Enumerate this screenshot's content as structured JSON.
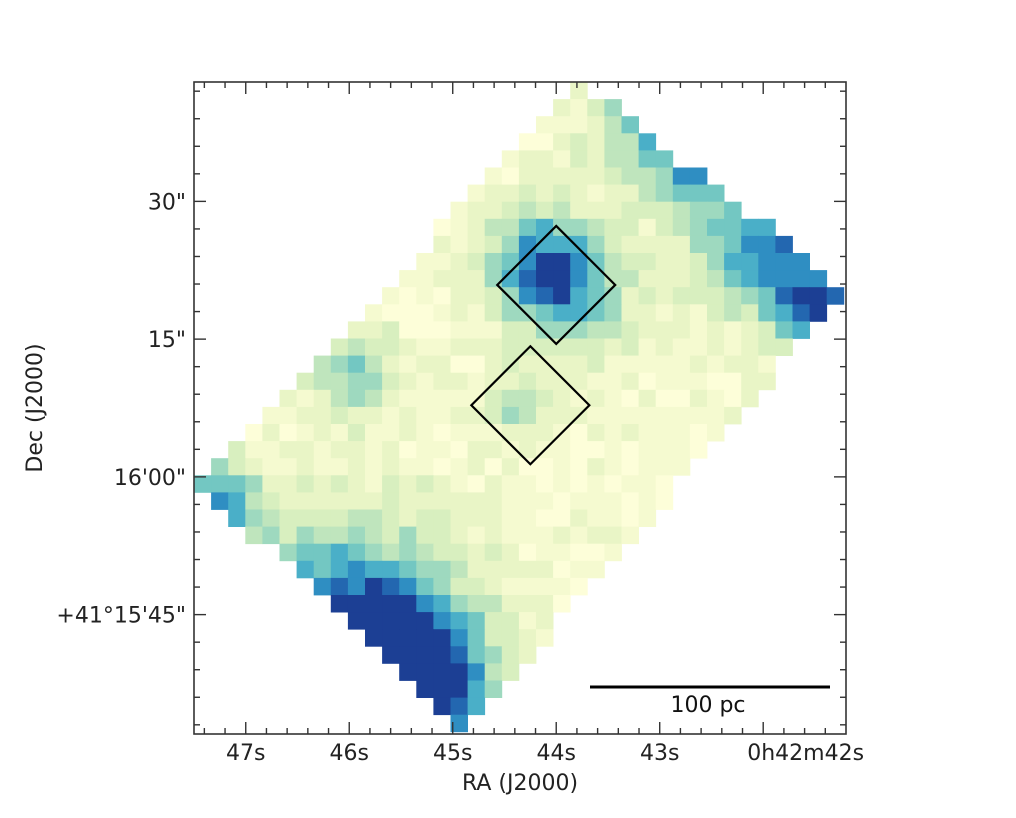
{
  "chart_data": {
    "type": "heatmap",
    "xlabel": "RA (J2000)",
    "ylabel": "Dec (J2000)",
    "x_ticks": [
      "47s",
      "46s",
      "45s",
      "44s",
      "43s",
      "0h42m42s"
    ],
    "y_ticks": [
      "30\"",
      "15\"",
      "16'00\"",
      "+41°15'45\""
    ],
    "x_tick_values_sec": [
      47,
      46,
      45,
      44,
      43,
      42
    ],
    "y_tick_values_arcsec": [
      30,
      15,
      0,
      -15
    ],
    "xlim_sec": [
      47.5,
      41.2
    ],
    "ylim_arcsec": [
      -28,
      43
    ],
    "scale_bar": {
      "label": "100 pc"
    },
    "apertures": [
      {
        "ra_sec": 44.0,
        "dec_arcsec": 20.9
      },
      {
        "ra_sec": 44.25,
        "dec_arcsec": 7.8
      }
    ],
    "colors": {
      "empty": "#ffffff",
      "ramp": [
        "#fdfed9",
        "#f5fad0",
        "#e9f5c6",
        "#d8efbf",
        "#bfe5bd",
        "#9ed9bf",
        "#73c7c2",
        "#4aafc8",
        "#2f8ec2",
        "#2367b0",
        "#1c3f94"
      ],
      "axis": "#333333"
    },
    "grid": false,
    "colorbar": false
  }
}
